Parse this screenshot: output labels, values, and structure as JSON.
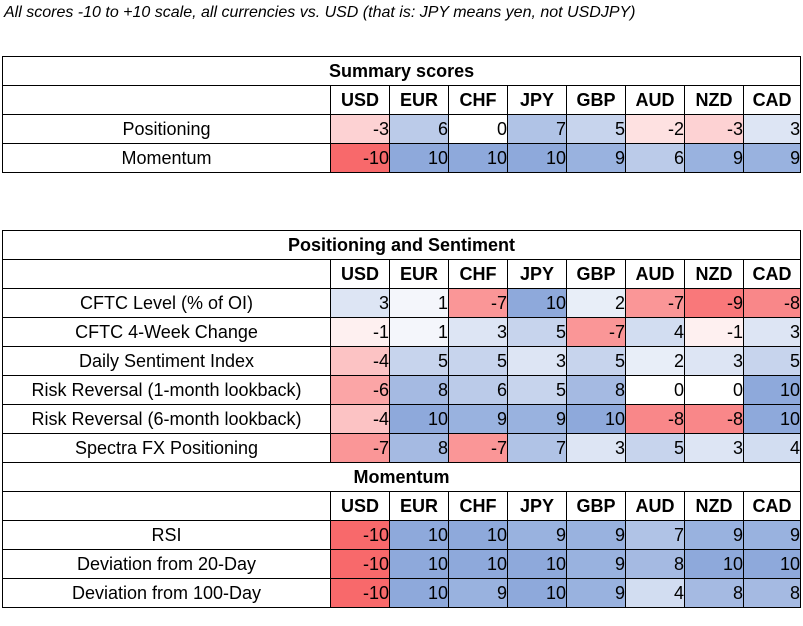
{
  "note": "All scores -10 to +10 scale, all currencies vs. USD (that is: JPY means yen, not USDJPY)",
  "currencies": [
    "USD",
    "EUR",
    "CHF",
    "JPY",
    "GBP",
    "AUD",
    "NZD",
    "CAD"
  ],
  "summary": {
    "title": "Summary scores",
    "rows": [
      {
        "label": "Positioning",
        "values": [
          -3,
          6,
          0,
          7,
          5,
          -2,
          -3,
          3
        ]
      },
      {
        "label": "Momentum",
        "values": [
          -10,
          10,
          10,
          10,
          9,
          6,
          9,
          9
        ]
      }
    ]
  },
  "positioning": {
    "title": "Positioning and Sentiment",
    "rows": [
      {
        "label": "CFTC Level (% of OI)",
        "values": [
          3,
          1,
          -7,
          10,
          2,
          -7,
          -9,
          -8
        ]
      },
      {
        "label": "CFTC 4-Week Change",
        "values": [
          -1,
          1,
          3,
          5,
          -7,
          4,
          -1,
          3
        ]
      },
      {
        "label": "Daily Sentiment Index",
        "values": [
          -4,
          5,
          5,
          3,
          5,
          2,
          3,
          5
        ]
      },
      {
        "label": "Risk Reversal (1-month lookback)",
        "values": [
          -6,
          8,
          6,
          5,
          8,
          0,
          0,
          10
        ]
      },
      {
        "label": "Risk Reversal (6-month lookback)",
        "values": [
          -4,
          10,
          9,
          9,
          10,
          -8,
          -8,
          10
        ]
      },
      {
        "label": "Spectra FX Positioning",
        "values": [
          -7,
          8,
          -7,
          7,
          3,
          5,
          3,
          4
        ]
      }
    ]
  },
  "momentum": {
    "title": "Momentum",
    "rows": [
      {
        "label": "RSI",
        "values": [
          -10,
          10,
          10,
          9,
          9,
          7,
          9,
          9
        ]
      },
      {
        "label": "Deviation from 20-Day",
        "values": [
          -10,
          10,
          10,
          10,
          9,
          8,
          10,
          10
        ]
      },
      {
        "label": "Deviation from 100-Day",
        "values": [
          -10,
          10,
          9,
          10,
          9,
          4,
          8,
          8
        ]
      }
    ]
  },
  "colors": {
    "negative": "#f8696b",
    "positive": "#8ea9db",
    "neutral": "#ffffff"
  }
}
